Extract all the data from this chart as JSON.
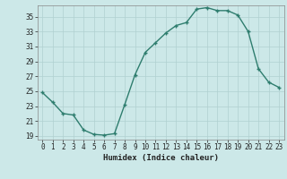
{
  "x": [
    0,
    1,
    2,
    3,
    4,
    5,
    6,
    7,
    8,
    9,
    10,
    11,
    12,
    13,
    14,
    15,
    16,
    17,
    18,
    19,
    20,
    21,
    22,
    23
  ],
  "y": [
    24.8,
    23.5,
    22.0,
    21.8,
    19.8,
    19.2,
    19.1,
    19.3,
    23.2,
    27.2,
    30.2,
    31.5,
    32.8,
    33.8,
    34.2,
    36.0,
    36.2,
    35.8,
    35.8,
    35.2,
    33.0,
    28.0,
    26.2,
    25.5
  ],
  "line_color": "#2e7d6e",
  "marker": "+",
  "markersize": 3,
  "linewidth": 1.0,
  "background_color": "#cce8e8",
  "grid_color": "#b0d0d0",
  "xlabel": "Humidex (Indice chaleur)",
  "xlim": [
    -0.5,
    23.5
  ],
  "ylim": [
    18.5,
    36.5
  ],
  "yticks": [
    19,
    21,
    23,
    25,
    27,
    29,
    31,
    33,
    35
  ],
  "xticks": [
    0,
    1,
    2,
    3,
    4,
    5,
    6,
    7,
    8,
    9,
    10,
    11,
    12,
    13,
    14,
    15,
    16,
    17,
    18,
    19,
    20,
    21,
    22,
    23
  ],
  "xlabel_fontsize": 6.5,
  "tick_fontsize": 5.5
}
